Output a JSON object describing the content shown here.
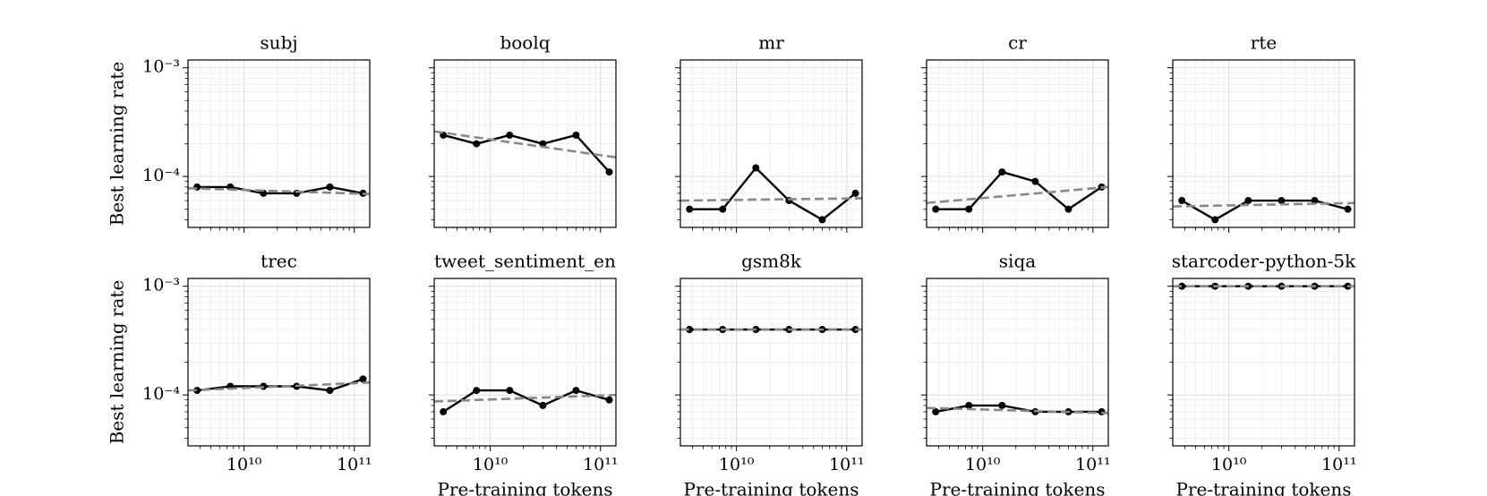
{
  "chart_data": [
    {
      "type": "line",
      "title": "subj",
      "ylabel": "Best learning rate",
      "xscale": "log",
      "yscale": "log",
      "grid": true,
      "xlim": [
        3100000000.0,
        138000000000.0
      ],
      "ylim": [
        3.4e-05,
        0.00118
      ],
      "xticks": [
        {
          "value": 10000000000.0,
          "label": null
        },
        {
          "value": 100000000000.0,
          "label": null
        }
      ],
      "yticks": [
        {
          "value": 0.001,
          "label": "10⁻³"
        },
        {
          "value": 0.0001,
          "label": "10⁻⁴"
        }
      ],
      "series": [
        {
          "color": "#000000",
          "x": [
            3750000000.0,
            7500000000.0,
            15000000000.0,
            30000000000.0,
            60000000000.0,
            120000000000.0
          ],
          "values": [
            8e-05,
            8e-05,
            7e-05,
            7e-05,
            8e-05,
            7e-05
          ]
        },
        {
          "color": "#888888",
          "dashed": true,
          "x": [
            3100000000.0,
            138000000000.0
          ],
          "values": [
            7.8e-05,
            6.9e-05
          ]
        }
      ]
    },
    {
      "type": "line",
      "title": "boolq",
      "xscale": "log",
      "yscale": "log",
      "grid": true,
      "xlim": [
        3100000000.0,
        138000000000.0
      ],
      "ylim": [
        3.4e-05,
        0.00118
      ],
      "xticks": [
        {
          "value": 10000000000.0,
          "label": null
        },
        {
          "value": 100000000000.0,
          "label": null
        }
      ],
      "yticks": [
        {
          "value": 0.001,
          "label": null
        },
        {
          "value": 0.0001,
          "label": null
        }
      ],
      "series": [
        {
          "color": "#000000",
          "x": [
            3750000000.0,
            7500000000.0,
            15000000000.0,
            30000000000.0,
            60000000000.0,
            120000000000.0
          ],
          "values": [
            0.00024,
            0.0002,
            0.00024,
            0.0002,
            0.00024,
            0.00011
          ]
        },
        {
          "color": "#888888",
          "dashed": true,
          "x": [
            3100000000.0,
            138000000000.0
          ],
          "values": [
            0.00026,
            0.00015
          ]
        }
      ]
    },
    {
      "type": "line",
      "title": "mr",
      "xscale": "log",
      "yscale": "log",
      "grid": true,
      "xlim": [
        3100000000.0,
        138000000000.0
      ],
      "ylim": [
        3.4e-05,
        0.00118
      ],
      "xticks": [
        {
          "value": 10000000000.0,
          "label": null
        },
        {
          "value": 100000000000.0,
          "label": null
        }
      ],
      "yticks": [
        {
          "value": 0.001,
          "label": null
        },
        {
          "value": 0.0001,
          "label": null
        }
      ],
      "series": [
        {
          "color": "#000000",
          "x": [
            3750000000.0,
            7500000000.0,
            15000000000.0,
            30000000000.0,
            60000000000.0,
            120000000000.0
          ],
          "values": [
            5e-05,
            5e-05,
            0.00012,
            6e-05,
            4e-05,
            7e-05
          ]
        },
        {
          "color": "#888888",
          "dashed": true,
          "x": [
            3100000000.0,
            138000000000.0
          ],
          "values": [
            6e-05,
            6.3e-05
          ]
        }
      ]
    },
    {
      "type": "line",
      "title": "cr",
      "xscale": "log",
      "yscale": "log",
      "grid": true,
      "xlim": [
        3100000000.0,
        138000000000.0
      ],
      "ylim": [
        3.4e-05,
        0.00118
      ],
      "xticks": [
        {
          "value": 10000000000.0,
          "label": null
        },
        {
          "value": 100000000000.0,
          "label": null
        }
      ],
      "yticks": [
        {
          "value": 0.001,
          "label": null
        },
        {
          "value": 0.0001,
          "label": null
        }
      ],
      "series": [
        {
          "color": "#000000",
          "x": [
            3750000000.0,
            7500000000.0,
            15000000000.0,
            30000000000.0,
            60000000000.0,
            120000000000.0
          ],
          "values": [
            5e-05,
            5e-05,
            0.00011,
            9e-05,
            5e-05,
            8e-05
          ]
        },
        {
          "color": "#888888",
          "dashed": true,
          "x": [
            3100000000.0,
            138000000000.0
          ],
          "values": [
            5.7e-05,
            8e-05
          ]
        }
      ]
    },
    {
      "type": "line",
      "title": "rte",
      "xscale": "log",
      "yscale": "log",
      "grid": true,
      "xlim": [
        3100000000.0,
        138000000000.0
      ],
      "ylim": [
        3.4e-05,
        0.00118
      ],
      "xticks": [
        {
          "value": 10000000000.0,
          "label": null
        },
        {
          "value": 100000000000.0,
          "label": null
        }
      ],
      "yticks": [
        {
          "value": 0.001,
          "label": null
        },
        {
          "value": 0.0001,
          "label": null
        }
      ],
      "series": [
        {
          "color": "#000000",
          "x": [
            3750000000.0,
            7500000000.0,
            15000000000.0,
            30000000000.0,
            60000000000.0,
            120000000000.0
          ],
          "values": [
            6e-05,
            4e-05,
            6e-05,
            6e-05,
            6e-05,
            5e-05
          ]
        },
        {
          "color": "#888888",
          "dashed": true,
          "x": [
            3100000000.0,
            138000000000.0
          ],
          "values": [
            5.3e-05,
            5.7e-05
          ]
        }
      ]
    },
    {
      "type": "line",
      "title": "trec",
      "ylabel": "Best learning rate",
      "xscale": "log",
      "yscale": "log",
      "grid": true,
      "xlim": [
        3100000000.0,
        138000000000.0
      ],
      "ylim": [
        3.4e-05,
        0.00118
      ],
      "xticks": [
        {
          "value": 10000000000.0,
          "label": "10¹⁰"
        },
        {
          "value": 100000000000.0,
          "label": "10¹¹"
        }
      ],
      "yticks": [
        {
          "value": 0.001,
          "label": "10⁻³"
        },
        {
          "value": 0.0001,
          "label": "10⁻⁴"
        }
      ],
      "series": [
        {
          "color": "#000000",
          "x": [
            3750000000.0,
            7500000000.0,
            15000000000.0,
            30000000000.0,
            60000000000.0,
            120000000000.0
          ],
          "values": [
            0.00011,
            0.00012,
            0.00012,
            0.00012,
            0.00011,
            0.00014
          ]
        },
        {
          "color": "#888888",
          "dashed": true,
          "x": [
            3100000000.0,
            138000000000.0
          ],
          "values": [
            0.00011,
            0.00013
          ]
        }
      ]
    },
    {
      "type": "line",
      "title": "tweet_sentiment_en",
      "xlabel": "Pre-training tokens",
      "xscale": "log",
      "yscale": "log",
      "grid": true,
      "xlim": [
        3100000000.0,
        138000000000.0
      ],
      "ylim": [
        3.4e-05,
        0.00118
      ],
      "xticks": [
        {
          "value": 10000000000.0,
          "label": "10¹⁰"
        },
        {
          "value": 100000000000.0,
          "label": "10¹¹"
        }
      ],
      "yticks": [
        {
          "value": 0.001,
          "label": null
        },
        {
          "value": 0.0001,
          "label": null
        }
      ],
      "series": [
        {
          "color": "#000000",
          "x": [
            3750000000.0,
            7500000000.0,
            15000000000.0,
            30000000000.0,
            60000000000.0,
            120000000000.0
          ],
          "values": [
            7e-05,
            0.00011,
            0.00011,
            8e-05,
            0.00011,
            9e-05
          ]
        },
        {
          "color": "#888888",
          "dashed": true,
          "x": [
            3100000000.0,
            138000000000.0
          ],
          "values": [
            8.7e-05,
            0.0001
          ]
        }
      ]
    },
    {
      "type": "line",
      "title": "gsm8k",
      "xlabel": "Pre-training tokens",
      "xscale": "log",
      "yscale": "log",
      "grid": true,
      "xlim": [
        3100000000.0,
        138000000000.0
      ],
      "ylim": [
        3.4e-05,
        0.00118
      ],
      "xticks": [
        {
          "value": 10000000000.0,
          "label": "10¹⁰"
        },
        {
          "value": 100000000000.0,
          "label": "10¹¹"
        }
      ],
      "yticks": [
        {
          "value": 0.001,
          "label": null
        },
        {
          "value": 0.0001,
          "label": null
        }
      ],
      "series": [
        {
          "color": "#000000",
          "x": [
            3750000000.0,
            7500000000.0,
            15000000000.0,
            30000000000.0,
            60000000000.0,
            120000000000.0
          ],
          "values": [
            0.0004,
            0.0004,
            0.0004,
            0.0004,
            0.0004,
            0.0004
          ]
        },
        {
          "color": "#888888",
          "dashed": true,
          "x": [
            3100000000.0,
            138000000000.0
          ],
          "values": [
            0.0004,
            0.0004
          ]
        }
      ]
    },
    {
      "type": "line",
      "title": "siqa",
      "xlabel": "Pre-training tokens",
      "xscale": "log",
      "yscale": "log",
      "grid": true,
      "xlim": [
        3100000000.0,
        138000000000.0
      ],
      "ylim": [
        3.4e-05,
        0.00118
      ],
      "xticks": [
        {
          "value": 10000000000.0,
          "label": "10¹⁰"
        },
        {
          "value": 100000000000.0,
          "label": "10¹¹"
        }
      ],
      "yticks": [
        {
          "value": 0.001,
          "label": null
        },
        {
          "value": 0.0001,
          "label": null
        }
      ],
      "series": [
        {
          "color": "#000000",
          "x": [
            3750000000.0,
            7500000000.0,
            15000000000.0,
            30000000000.0,
            60000000000.0,
            120000000000.0
          ],
          "values": [
            7e-05,
            8e-05,
            8e-05,
            7e-05,
            7e-05,
            7e-05
          ]
        },
        {
          "color": "#888888",
          "dashed": true,
          "x": [
            3100000000.0,
            138000000000.0
          ],
          "values": [
            7.6e-05,
            6.8e-05
          ]
        }
      ]
    },
    {
      "type": "line",
      "title": "starcoder-python-5k",
      "xlabel": "Pre-training tokens",
      "xscale": "log",
      "yscale": "log",
      "grid": true,
      "xlim": [
        3100000000.0,
        138000000000.0
      ],
      "ylim": [
        3.4e-05,
        0.00118
      ],
      "xticks": [
        {
          "value": 10000000000.0,
          "label": "10¹⁰"
        },
        {
          "value": 100000000000.0,
          "label": "10¹¹"
        }
      ],
      "yticks": [
        {
          "value": 0.001,
          "label": null
        },
        {
          "value": 0.0001,
          "label": null
        }
      ],
      "series": [
        {
          "color": "#000000",
          "x": [
            3750000000.0,
            7500000000.0,
            15000000000.0,
            30000000000.0,
            60000000000.0,
            120000000000.0
          ],
          "values": [
            0.001,
            0.001,
            0.001,
            0.001,
            0.001,
            0.001
          ]
        },
        {
          "color": "#888888",
          "dashed": true,
          "x": [
            3100000000.0,
            138000000000.0
          ],
          "values": [
            0.001,
            0.001
          ]
        }
      ]
    }
  ]
}
